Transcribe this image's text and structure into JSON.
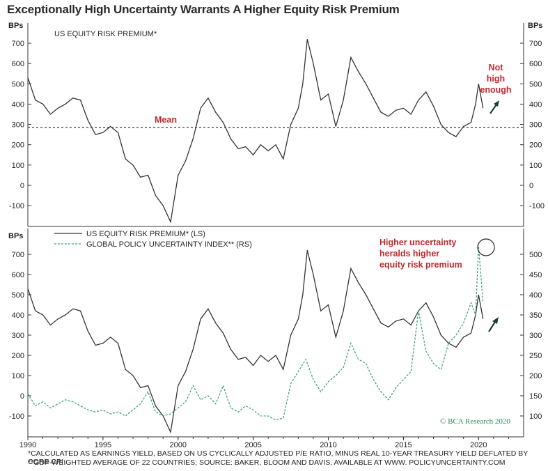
{
  "title": "Exceptionally High Uncertainty Warrants A Higher Equity Risk Premium",
  "footnote1": "*CALCULATED AS EARNINGS YIELD, BASED ON US CYCLICALLY ADJUSTED P/E RATIO, MINUS REAL 10-YEAR TREASURY YIELD DEFLATED BY CORE CPI",
  "footnote2": "**GDP-WEIGHTED AVERAGE OF 22 COUNTRIES; SOURCE: BAKER, BLOOM AND DAVIS, AVAILABLE AT WWW. POLICYUNCERTAINTY.COM",
  "credit": "© BCA Research 2020",
  "colors": {
    "erp": "#333333",
    "epu": "#3aa57a",
    "annotation": "#c0282d",
    "arrow": "#1f3b3b"
  },
  "chart_data": [
    {
      "type": "line",
      "title": "US EQUITY RISK PREMIUM*",
      "ylabel_left": "BPs",
      "ylabel_right": "BPs",
      "ylim": [
        -200,
        750
      ],
      "yticks": [
        -100,
        0,
        100,
        200,
        300,
        400,
        500,
        600,
        700
      ],
      "xlim": [
        1990,
        2023
      ],
      "mean_line": {
        "value": 285,
        "label": "Mean"
      },
      "annotation": "Not high enough",
      "series": [
        {
          "x": [
            1990.0,
            1990.5,
            1991.0,
            1991.5,
            1992.0,
            1992.5,
            1993.0,
            1993.5,
            1994.0,
            1994.5,
            1995.0,
            1995.5,
            1996.0,
            1996.5,
            1997.0,
            1997.5,
            1998.0,
            1998.5,
            1999.0,
            1999.5,
            2000.0,
            2000.5,
            2001.0,
            2001.5,
            2002.0,
            2002.5,
            2003.0,
            2003.5,
            2004.0,
            2004.5,
            2005.0,
            2005.5,
            2006.0,
            2006.5,
            2007.0,
            2007.5,
            2008.0,
            2008.3,
            2008.6,
            2009.0,
            2009.5,
            2010.0,
            2010.5,
            2011.0,
            2011.5,
            2012.0,
            2012.5,
            2013.0,
            2013.5,
            2014.0,
            2014.5,
            2015.0,
            2015.5,
            2016.0,
            2016.5,
            2017.0,
            2017.5,
            2018.0,
            2018.5,
            2019.0,
            2019.5,
            2019.8,
            2020.0,
            2020.3
          ],
          "values": [
            530,
            420,
            400,
            350,
            380,
            400,
            430,
            420,
            320,
            250,
            260,
            290,
            260,
            130,
            100,
            40,
            50,
            -50,
            -100,
            -180,
            50,
            120,
            230,
            380,
            430,
            360,
            310,
            230,
            180,
            190,
            150,
            200,
            170,
            200,
            130,
            300,
            380,
            500,
            720,
            600,
            420,
            450,
            290,
            420,
            630,
            560,
            500,
            430,
            360,
            340,
            370,
            380,
            350,
            420,
            460,
            390,
            300,
            260,
            240,
            290,
            310,
            400,
            500,
            380
          ]
        }
      ]
    },
    {
      "type": "line",
      "ylabel_left": "BPs",
      "ylim_left": [
        -200,
        750
      ],
      "yticks_left": [
        -100,
        0,
        100,
        200,
        300,
        400,
        500,
        600,
        700
      ],
      "ylim_right": [
        50,
        550
      ],
      "yticks_right": [
        100,
        150,
        200,
        250,
        300,
        350,
        400,
        450,
        500
      ],
      "xlim": [
        1990,
        2023
      ],
      "xticks": [
        1990,
        1995,
        2000,
        2005,
        2010,
        2015,
        2020
      ],
      "annotation": "Higher uncertainty heralds higher equity risk premium",
      "series": [
        {
          "name": "US EQUITY RISK PREMIUM* (LS)",
          "axis": "left",
          "style": "solid",
          "x": [
            1990.0,
            1990.5,
            1991.0,
            1991.5,
            1992.0,
            1992.5,
            1993.0,
            1993.5,
            1994.0,
            1994.5,
            1995.0,
            1995.5,
            1996.0,
            1996.5,
            1997.0,
            1997.5,
            1998.0,
            1998.5,
            1999.0,
            1999.5,
            2000.0,
            2000.5,
            2001.0,
            2001.5,
            2002.0,
            2002.5,
            2003.0,
            2003.5,
            2004.0,
            2004.5,
            2005.0,
            2005.5,
            2006.0,
            2006.5,
            2007.0,
            2007.5,
            2008.0,
            2008.3,
            2008.6,
            2009.0,
            2009.5,
            2010.0,
            2010.5,
            2011.0,
            2011.5,
            2012.0,
            2012.5,
            2013.0,
            2013.5,
            2014.0,
            2014.5,
            2015.0,
            2015.5,
            2016.0,
            2016.5,
            2017.0,
            2017.5,
            2018.0,
            2018.5,
            2019.0,
            2019.5,
            2019.8,
            2020.0,
            2020.3
          ],
          "values": [
            530,
            420,
            400,
            350,
            380,
            400,
            430,
            420,
            320,
            250,
            260,
            290,
            260,
            130,
            100,
            40,
            50,
            -50,
            -100,
            -180,
            50,
            120,
            230,
            380,
            430,
            360,
            310,
            230,
            180,
            190,
            150,
            200,
            170,
            200,
            130,
            300,
            380,
            500,
            720,
            600,
            420,
            450,
            290,
            420,
            630,
            560,
            500,
            430,
            360,
            340,
            370,
            380,
            350,
            420,
            460,
            390,
            300,
            260,
            240,
            290,
            310,
            400,
            500,
            380
          ]
        },
        {
          "name": "GLOBAL POLICY UNCERTAINTY INDEX** (RS)",
          "axis": "right",
          "style": "dashed",
          "x": [
            1990.0,
            1990.5,
            1991.0,
            1991.5,
            1992.0,
            1992.5,
            1993.0,
            1993.5,
            1994.0,
            1994.5,
            1995.0,
            1995.5,
            1996.0,
            1996.5,
            1997.0,
            1997.5,
            1998.0,
            1998.5,
            1999.0,
            1999.5,
            2000.0,
            2000.5,
            2001.0,
            2001.5,
            2002.0,
            2002.5,
            2003.0,
            2003.5,
            2004.0,
            2004.5,
            2005.0,
            2005.5,
            2006.0,
            2006.5,
            2007.0,
            2007.5,
            2008.0,
            2008.5,
            2009.0,
            2009.5,
            2010.0,
            2010.5,
            2011.0,
            2011.5,
            2012.0,
            2012.5,
            2013.0,
            2013.5,
            2014.0,
            2014.5,
            2015.0,
            2015.5,
            2016.0,
            2016.5,
            2017.0,
            2017.5,
            2018.0,
            2018.5,
            2019.0,
            2019.5,
            2019.8,
            2020.0,
            2020.3
          ],
          "values": [
            155,
            125,
            135,
            120,
            130,
            140,
            135,
            125,
            115,
            110,
            115,
            105,
            110,
            100,
            115,
            130,
            160,
            110,
            100,
            105,
            120,
            135,
            175,
            140,
            150,
            130,
            175,
            120,
            110,
            125,
            115,
            100,
            100,
            90,
            95,
            180,
            210,
            240,
            190,
            160,
            185,
            200,
            220,
            280,
            240,
            230,
            190,
            160,
            140,
            170,
            190,
            210,
            360,
            260,
            230,
            215,
            280,
            300,
            330,
            380,
            350,
            520,
            380
          ]
        }
      ]
    }
  ]
}
